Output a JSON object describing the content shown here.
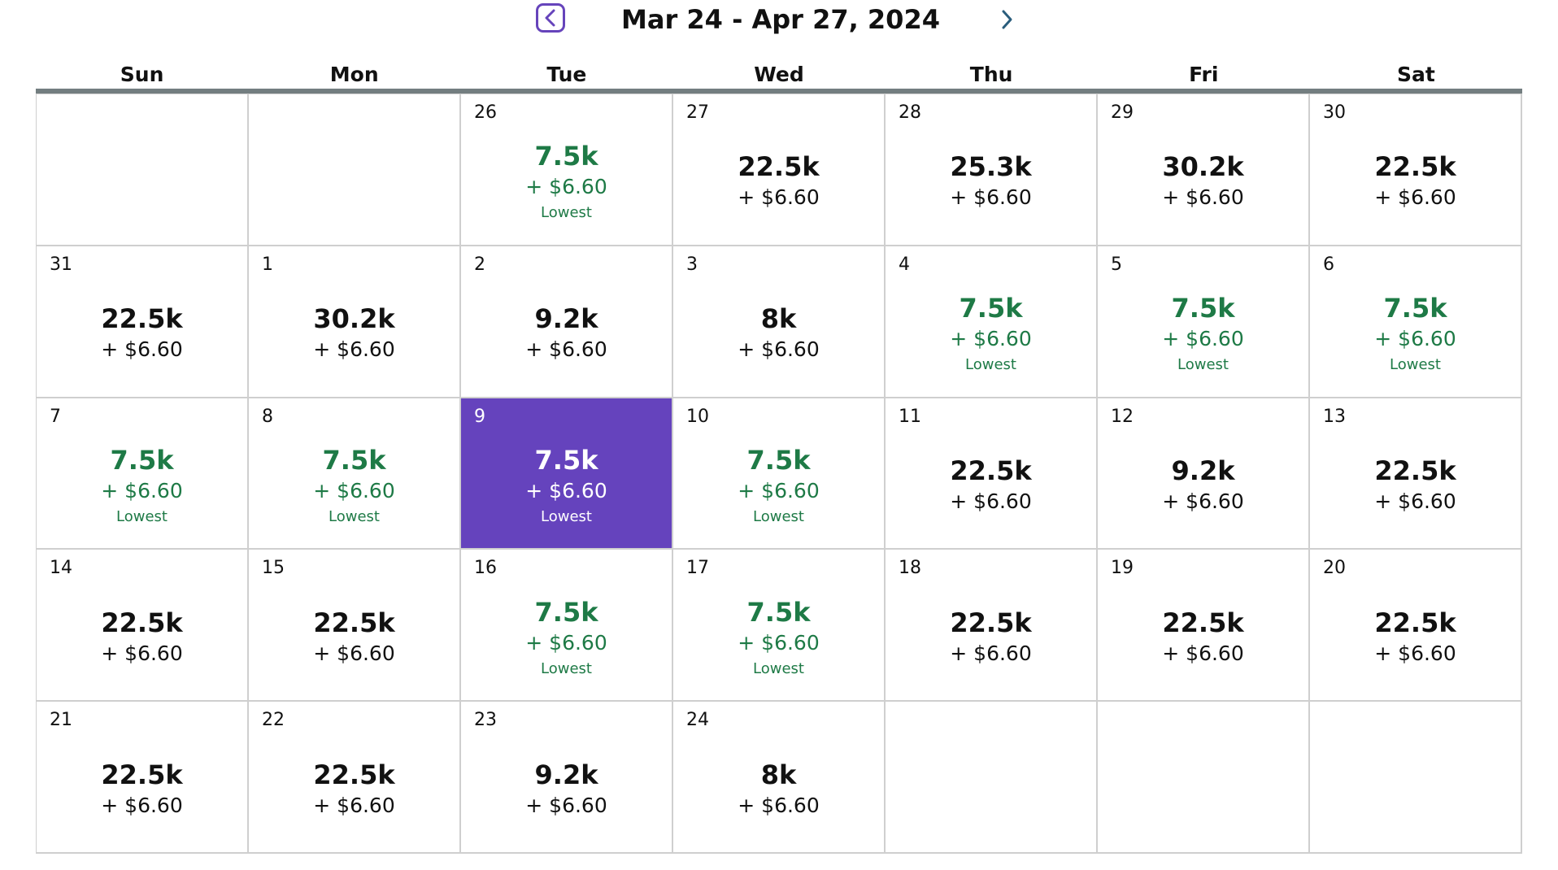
{
  "header": {
    "range_title": "Mar 24 - Apr 27, 2024",
    "prev_icon": "chevron-left-icon",
    "next_icon": "chevron-right-icon"
  },
  "weekdays": [
    "Sun",
    "Mon",
    "Tue",
    "Wed",
    "Thu",
    "Fri",
    "Sat"
  ],
  "colors": {
    "accent": "#6543bd",
    "lowest_green": "#1e7a46",
    "rule": "#737e80",
    "border": "#cfcfcf"
  },
  "weeks": [
    [
      null,
      null,
      {
        "day": "26",
        "points": "7.5k",
        "tax": "+ $6.60",
        "lowest": "Lowest"
      },
      {
        "day": "27",
        "points": "22.5k",
        "tax": "+ $6.60"
      },
      {
        "day": "28",
        "points": "25.3k",
        "tax": "+ $6.60"
      },
      {
        "day": "29",
        "points": "30.2k",
        "tax": "+ $6.60"
      },
      {
        "day": "30",
        "points": "22.5k",
        "tax": "+ $6.60"
      }
    ],
    [
      {
        "day": "31",
        "points": "22.5k",
        "tax": "+ $6.60"
      },
      {
        "day": "1",
        "points": "30.2k",
        "tax": "+ $6.60"
      },
      {
        "day": "2",
        "points": "9.2k",
        "tax": "+ $6.60"
      },
      {
        "day": "3",
        "points": "8k",
        "tax": "+ $6.60"
      },
      {
        "day": "4",
        "points": "7.5k",
        "tax": "+ $6.60",
        "lowest": "Lowest"
      },
      {
        "day": "5",
        "points": "7.5k",
        "tax": "+ $6.60",
        "lowest": "Lowest"
      },
      {
        "day": "6",
        "points": "7.5k",
        "tax": "+ $6.60",
        "lowest": "Lowest"
      }
    ],
    [
      {
        "day": "7",
        "points": "7.5k",
        "tax": "+ $6.60",
        "lowest": "Lowest"
      },
      {
        "day": "8",
        "points": "7.5k",
        "tax": "+ $6.60",
        "lowest": "Lowest"
      },
      {
        "day": "9",
        "points": "7.5k",
        "tax": "+ $6.60",
        "lowest": "Lowest",
        "selected": true
      },
      {
        "day": "10",
        "points": "7.5k",
        "tax": "+ $6.60",
        "lowest": "Lowest"
      },
      {
        "day": "11",
        "points": "22.5k",
        "tax": "+ $6.60"
      },
      {
        "day": "12",
        "points": "9.2k",
        "tax": "+ $6.60"
      },
      {
        "day": "13",
        "points": "22.5k",
        "tax": "+ $6.60"
      }
    ],
    [
      {
        "day": "14",
        "points": "22.5k",
        "tax": "+ $6.60"
      },
      {
        "day": "15",
        "points": "22.5k",
        "tax": "+ $6.60"
      },
      {
        "day": "16",
        "points": "7.5k",
        "tax": "+ $6.60",
        "lowest": "Lowest"
      },
      {
        "day": "17",
        "points": "7.5k",
        "tax": "+ $6.60",
        "lowest": "Lowest"
      },
      {
        "day": "18",
        "points": "22.5k",
        "tax": "+ $6.60"
      },
      {
        "day": "19",
        "points": "22.5k",
        "tax": "+ $6.60"
      },
      {
        "day": "20",
        "points": "22.5k",
        "tax": "+ $6.60"
      }
    ],
    [
      {
        "day": "21",
        "points": "22.5k",
        "tax": "+ $6.60"
      },
      {
        "day": "22",
        "points": "22.5k",
        "tax": "+ $6.60"
      },
      {
        "day": "23",
        "points": "9.2k",
        "tax": "+ $6.60"
      },
      {
        "day": "24",
        "points": "8k",
        "tax": "+ $6.60"
      },
      null,
      null,
      null
    ]
  ]
}
